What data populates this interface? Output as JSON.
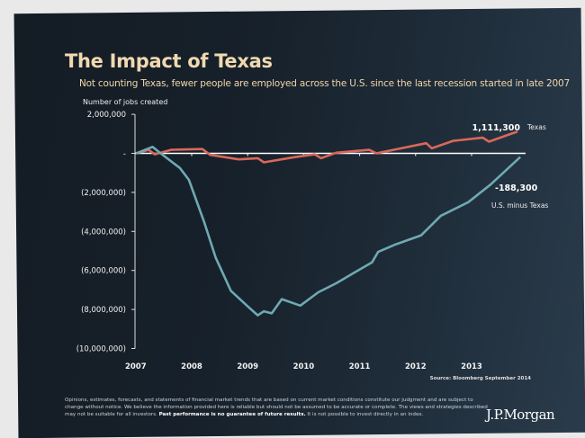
{
  "chart_data": {
    "type": "line",
    "title": "The Impact of Texas",
    "subtitle": "Not counting Texas, fewer people are employed across the U.S. since the last recession started in late 2007",
    "ylabel": "Number of jobs created",
    "xlabel": "",
    "xlim": [
      2007,
      2013.9
    ],
    "ylim": [
      -10000000,
      2000000
    ],
    "x_ticks": [
      "2007",
      "2008",
      "2009",
      "2010",
      "2011",
      "2012",
      "2013"
    ],
    "y_ticks": [
      {
        "value": 2000000,
        "label": "2,000,000"
      },
      {
        "value": 0,
        "label": "-"
      },
      {
        "value": -2000000,
        "label": "(2,000,000)"
      },
      {
        "value": -4000000,
        "label": "(4,000,000)"
      },
      {
        "value": -6000000,
        "label": "(6,000,000)"
      },
      {
        "value": -8000000,
        "label": "(8,000,000)"
      },
      {
        "value": -10000000,
        "label": "(10,000,000)"
      }
    ],
    "grid": false,
    "series": [
      {
        "name": "Texas",
        "color": "#d9685a",
        "end_label": "1,111,300",
        "x": [
          2007.0,
          2007.23,
          2007.34,
          2007.63,
          2008.19,
          2008.33,
          2008.84,
          2009.18,
          2009.29,
          2009.83,
          2010.2,
          2010.31,
          2010.58,
          2011.17,
          2011.3,
          2012.19,
          2012.29,
          2012.67,
          2013.2,
          2013.31,
          2013.71,
          2013.82
        ],
        "y": [
          0,
          180000,
          -50000,
          180000,
          220000,
          -80000,
          -310000,
          -250000,
          -460000,
          -200000,
          -50000,
          -250000,
          30000,
          180000,
          0,
          520000,
          260000,
          640000,
          800000,
          600000,
          1010000,
          1111300
        ]
      },
      {
        "name": "U.S. minus Texas",
        "color": "#6fa9b2",
        "end_label": "-188,300",
        "x": [
          2007.01,
          2007.3,
          2007.47,
          2007.79,
          2007.95,
          2008.22,
          2008.43,
          2008.7,
          2009.02,
          2009.18,
          2009.29,
          2009.43,
          2009.61,
          2009.94,
          2010.26,
          2010.58,
          2010.9,
          2011.22,
          2011.33,
          2011.65,
          2012.1,
          2012.45,
          2012.94,
          2013.34,
          2013.87
        ],
        "y": [
          0,
          330000,
          -50000,
          -750000,
          -1360000,
          -3500000,
          -5350000,
          -7040000,
          -7890000,
          -8300000,
          -8090000,
          -8200000,
          -7470000,
          -7800000,
          -7120000,
          -6660000,
          -6120000,
          -5590000,
          -5050000,
          -4660000,
          -4200000,
          -3200000,
          -2500000,
          -1600000,
          -188300
        ]
      }
    ],
    "source": "Source: Bloomberg September 2014"
  },
  "footer": {
    "disclaimer_1": "Opinions, estimates, forecasts, and statements of financial market trends that are based on current market conditions constitute our judgment and are subject to change without notice. We believe the information provided here is reliable but should not be assumed to be accurate or complete. The views and strategies described may not be suitable for all investors. ",
    "disclaimer_bold": "Past performance is no guarantee of future results.",
    "disclaimer_2": " It is not possible to invest directly in an index.",
    "logo": "J.P.Morgan"
  }
}
